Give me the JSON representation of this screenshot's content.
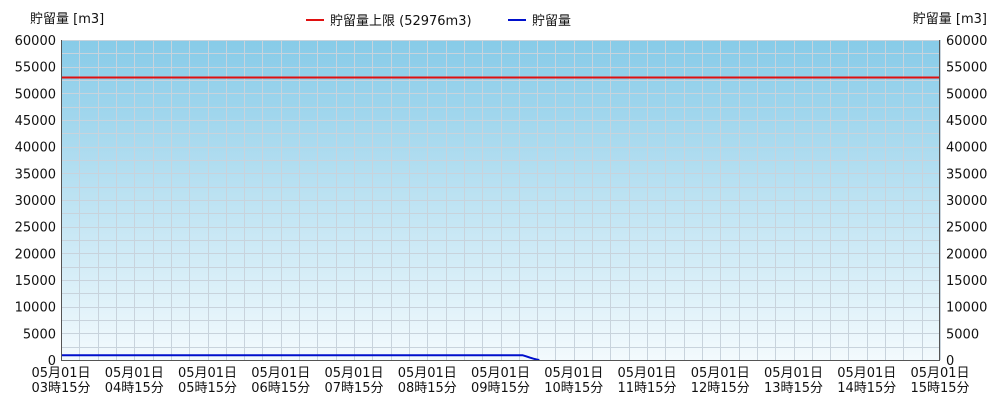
{
  "chart_data": {
    "type": "line",
    "title": "",
    "ylabel_left": "貯留量 [m3]",
    "ylabel_right": "貯留量 [m3]",
    "ylim": [
      0,
      60000
    ],
    "y_ticks": [
      0,
      5000,
      10000,
      15000,
      20000,
      25000,
      30000,
      35000,
      40000,
      45000,
      50000,
      55000,
      60000
    ],
    "x_ticks": [
      {
        "line1": "05月01日",
        "line2": "03時15分",
        "hours": 3.25
      },
      {
        "line1": "05月01日",
        "line2": "04時15分",
        "hours": 4.25
      },
      {
        "line1": "05月01日",
        "line2": "05時15分",
        "hours": 5.25
      },
      {
        "line1": "05月01日",
        "line2": "06時15分",
        "hours": 6.25
      },
      {
        "line1": "05月01日",
        "line2": "07時15分",
        "hours": 7.25
      },
      {
        "line1": "05月01日",
        "line2": "08時15分",
        "hours": 8.25
      },
      {
        "line1": "05月01日",
        "line2": "09時15分",
        "hours": 9.25
      },
      {
        "line1": "05月01日",
        "line2": "10時15分",
        "hours": 10.25
      },
      {
        "line1": "05月01日",
        "line2": "11時15分",
        "hours": 11.25
      },
      {
        "line1": "05月01日",
        "line2": "12時15分",
        "hours": 12.25
      },
      {
        "line1": "05月01日",
        "line2": "13時15分",
        "hours": 13.25
      },
      {
        "line1": "05月01日",
        "line2": "14時15分",
        "hours": 14.25
      },
      {
        "line1": "05月01日",
        "line2": "15時15分",
        "hours": 15.25
      }
    ],
    "xlim_hours": [
      3.25,
      15.25
    ],
    "legend_position": "top-center",
    "grid": true,
    "background_gradient": [
      "#87cbe8",
      "#f3fafd"
    ],
    "series": [
      {
        "name": "貯留量上限 (52976m3)",
        "color": "#e01010",
        "points": [
          [
            3.25,
            52976
          ],
          [
            15.25,
            52976
          ]
        ]
      },
      {
        "name": "貯留量",
        "color": "#0010cc",
        "points": [
          [
            3.25,
            900
          ],
          [
            4.25,
            900
          ],
          [
            5.25,
            900
          ],
          [
            6.25,
            900
          ],
          [
            7.25,
            900
          ],
          [
            8.25,
            900
          ],
          [
            9.25,
            900
          ],
          [
            9.55,
            900
          ],
          [
            9.6,
            700
          ],
          [
            9.65,
            450
          ],
          [
            9.7,
            250
          ],
          [
            9.75,
            80
          ],
          [
            9.78,
            0
          ]
        ]
      }
    ]
  }
}
